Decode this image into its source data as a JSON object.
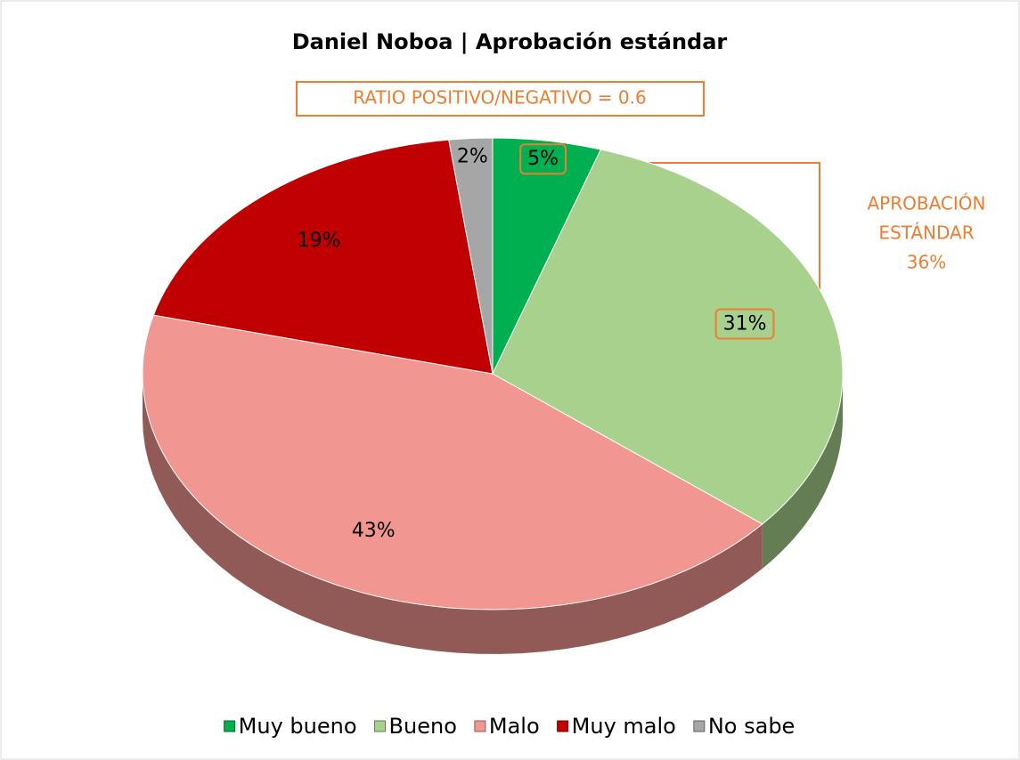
{
  "chart_data": {
    "type": "pie",
    "title": "Daniel Noboa | Aprobación estándar",
    "annotations": [
      "RATIO POSITIVO/NEGATIVO = 0.6",
      [
        "APROBACIÓN",
        "ESTÁNDAR",
        "36%"
      ]
    ],
    "categories": [
      "Muy bueno",
      "Bueno",
      "Malo",
      "Muy malo",
      "No sabe"
    ],
    "values": [
      5,
      31,
      43,
      19,
      2
    ],
    "value_labels": [
      "5%",
      "31%",
      "43%",
      "19%",
      "2%"
    ],
    "colors": [
      "#00b050",
      "#a9d18e",
      "#f19690",
      "#c00000",
      "#a6a6a6"
    ],
    "legend": "bottom"
  }
}
